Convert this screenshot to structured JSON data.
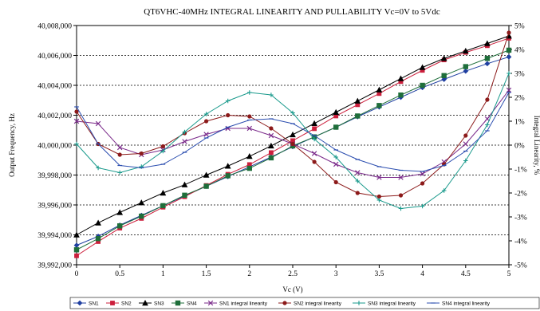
{
  "chart_data": {
    "type": "line",
    "title": "QT6VHC-40MHz INTEGRAL LINEARITY AND PULLABILITY Vc=0V to 5Vdc",
    "xlabel": "Vc (V)",
    "ylabel_left": "Output Frequency, Hz",
    "ylabel_right": "Integral Linearity, %",
    "x": [
      0,
      0.25,
      0.5,
      0.75,
      1,
      1.25,
      1.5,
      1.75,
      2,
      2.25,
      2.5,
      2.75,
      3,
      3.25,
      3.5,
      3.75,
      4,
      4.25,
      4.5,
      4.75,
      5
    ],
    "x_ticks": [
      0,
      0.5,
      1,
      1.5,
      2,
      2.5,
      3,
      3.5,
      4,
      4.5,
      5
    ],
    "x_tick_labels": [
      "0",
      "0.5",
      "1",
      "1.5",
      "2",
      "2.5",
      "3",
      "3.5",
      "4",
      "4.5",
      "5"
    ],
    "xlim": [
      0,
      5
    ],
    "ylim_left": [
      39992000,
      40008000
    ],
    "ylim_right": [
      -5,
      5
    ],
    "y_left_ticks": [
      39992000,
      39994000,
      39996000,
      39998000,
      40000000,
      40002000,
      40004000,
      40006000,
      40008000
    ],
    "y_left_tick_labels": [
      "39,992,000",
      "39,994,000",
      "39,996,000",
      "39,998,000",
      "40,000,000",
      "40,002,000",
      "40,004,000",
      "40,006,000",
      "40,008,000"
    ],
    "y_right_ticks": [
      -5,
      -4,
      -3,
      -2,
      -1,
      0,
      1,
      2,
      3,
      4,
      5
    ],
    "y_right_tick_labels": [
      "-5%",
      "-4%",
      "-3%",
      "-2%",
      "-1%",
      "0%",
      "1%",
      "2%",
      "3%",
      "4%",
      "5%"
    ],
    "grid": "horizontal dashed",
    "legend_position": "bottom",
    "series": [
      {
        "name": "SN1",
        "axis": "left",
        "color": "#1f3fa0",
        "marker": "diamond",
        "values": [
          39993300,
          39993900,
          39994650,
          39995300,
          39995950,
          39996600,
          39997250,
          39997900,
          39998550,
          39999200,
          39999900,
          40000550,
          40001200,
          40001900,
          40002550,
          40003200,
          40003850,
          40004400,
          40004950,
          40005450,
          40005900
        ]
      },
      {
        "name": "SN2",
        "axis": "left",
        "color": "#cc1f3c",
        "marker": "square",
        "values": [
          39992600,
          39993550,
          39994450,
          39995100,
          39995850,
          39996550,
          39997300,
          39998050,
          39998700,
          39999500,
          40000300,
          40001100,
          40001950,
          40002700,
          40003450,
          40004250,
          40005000,
          40005700,
          40006200,
          40006650,
          40007150
        ]
      },
      {
        "name": "SN3",
        "axis": "left",
        "color": "#000000",
        "marker": "triangle",
        "values": [
          39994000,
          39994800,
          39995500,
          39996150,
          39996800,
          39997350,
          39998000,
          39998600,
          39999250,
          39999950,
          40000700,
          40001450,
          40002200,
          40002950,
          40003700,
          40004450,
          40005200,
          40005800,
          40006300,
          40006800,
          40007300
        ]
      },
      {
        "name": "SN4",
        "axis": "left",
        "color": "#1e6e3a",
        "marker": "square-filled",
        "values": [
          39993000,
          39993750,
          39994600,
          39995250,
          39995950,
          39996650,
          39997250,
          39997950,
          39998450,
          39999150,
          39999950,
          40000550,
          40001200,
          40001950,
          40002650,
          40003350,
          40004000,
          40004650,
          40005250,
          40005800,
          40006350
        ]
      },
      {
        "name": "SN1 integral linearity",
        "axis": "right",
        "color": "#7a2a8a",
        "marker": "x",
        "values": [
          1.0,
          0.9,
          -0.1,
          -0.4,
          -0.2,
          0.15,
          0.45,
          0.7,
          0.7,
          0.4,
          0.05,
          -0.35,
          -0.8,
          -1.15,
          -1.35,
          -1.35,
          -1.2,
          -0.7,
          0.05,
          1.1,
          2.3
        ]
      },
      {
        "name": "SN2 integral linearity",
        "axis": "right",
        "color": "#8c1a1a",
        "marker": "circle",
        "values": [
          1.4,
          0.05,
          -0.4,
          -0.35,
          -0.05,
          0.5,
          1.0,
          1.25,
          1.2,
          0.7,
          0.05,
          -0.7,
          -1.55,
          -2.0,
          -2.15,
          -2.1,
          -1.6,
          -0.8,
          0.4,
          1.9,
          4.7
        ]
      },
      {
        "name": "SN3 integral linearity",
        "axis": "right",
        "color": "#1a9a8c",
        "marker": "plus",
        "values": [
          0.05,
          -0.95,
          -1.15,
          -0.9,
          -0.25,
          0.55,
          1.3,
          1.85,
          2.2,
          2.1,
          1.35,
          0.25,
          -0.5,
          -1.5,
          -2.3,
          -2.65,
          -2.55,
          -1.9,
          -0.65,
          0.85,
          3.0
        ]
      },
      {
        "name": "SN4 integral linearity",
        "axis": "right",
        "color": "#2d4fb0",
        "marker": "dash",
        "values": [
          1.6,
          0.05,
          -0.85,
          -0.95,
          -0.8,
          -0.3,
          0.3,
          0.75,
          1.05,
          1.1,
          0.9,
          0.4,
          -0.2,
          -0.6,
          -0.9,
          -1.05,
          -1.1,
          -0.85,
          -0.25,
          0.6,
          2.2
        ]
      }
    ]
  }
}
